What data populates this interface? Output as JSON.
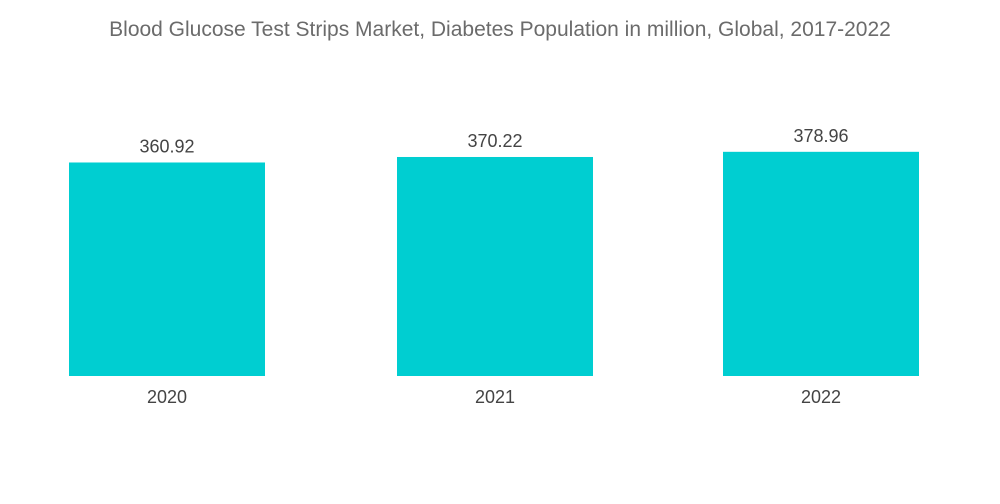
{
  "chart_data": {
    "type": "bar",
    "title": "Blood Glucose Test Strips Market, Diabetes Population in million, Global, 2017-2022",
    "xlabel": "",
    "ylabel": "",
    "categories": [
      "2020",
      "2021",
      "2022"
    ],
    "values": [
      360.92,
      370.22,
      378.96
    ],
    "data_labels": [
      "360.92",
      "370.22",
      "378.96"
    ],
    "bar_color": "#00CED1",
    "grid": false,
    "legend": "none"
  }
}
